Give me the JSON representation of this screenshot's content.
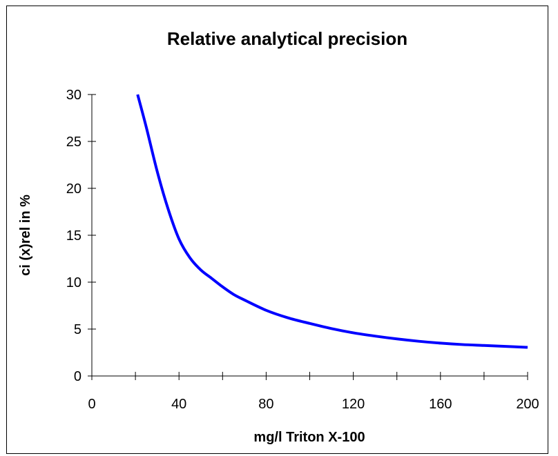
{
  "chart_data": {
    "type": "line",
    "title": "Relative analytical precision",
    "xlabel": "mg/l Triton X-100",
    "ylabel": "ci (x)rel in %",
    "xlim": [
      0,
      200
    ],
    "ylim": [
      0,
      30
    ],
    "x_ticks": [
      0,
      40,
      80,
      120,
      160,
      200
    ],
    "x_minor_ticks": [
      20,
      60,
      100,
      140,
      180
    ],
    "y_ticks": [
      0,
      5,
      10,
      15,
      20,
      25,
      30
    ],
    "grid": false,
    "legend": "none",
    "series": [
      {
        "color": "#0000ff",
        "x": [
          21,
          25,
          30,
          35,
          40,
          45,
          50,
          55,
          60,
          65,
          70,
          80,
          90,
          100,
          110,
          120,
          130,
          140,
          150,
          160,
          170,
          180,
          190,
          200
        ],
        "y": [
          30,
          26.5,
          21.8,
          17.8,
          14.6,
          12.6,
          11.3,
          10.4,
          9.5,
          8.7,
          8.1,
          7.0,
          6.2,
          5.6,
          5.05,
          4.6,
          4.25,
          3.95,
          3.7,
          3.5,
          3.35,
          3.25,
          3.15,
          3.05
        ]
      }
    ]
  }
}
